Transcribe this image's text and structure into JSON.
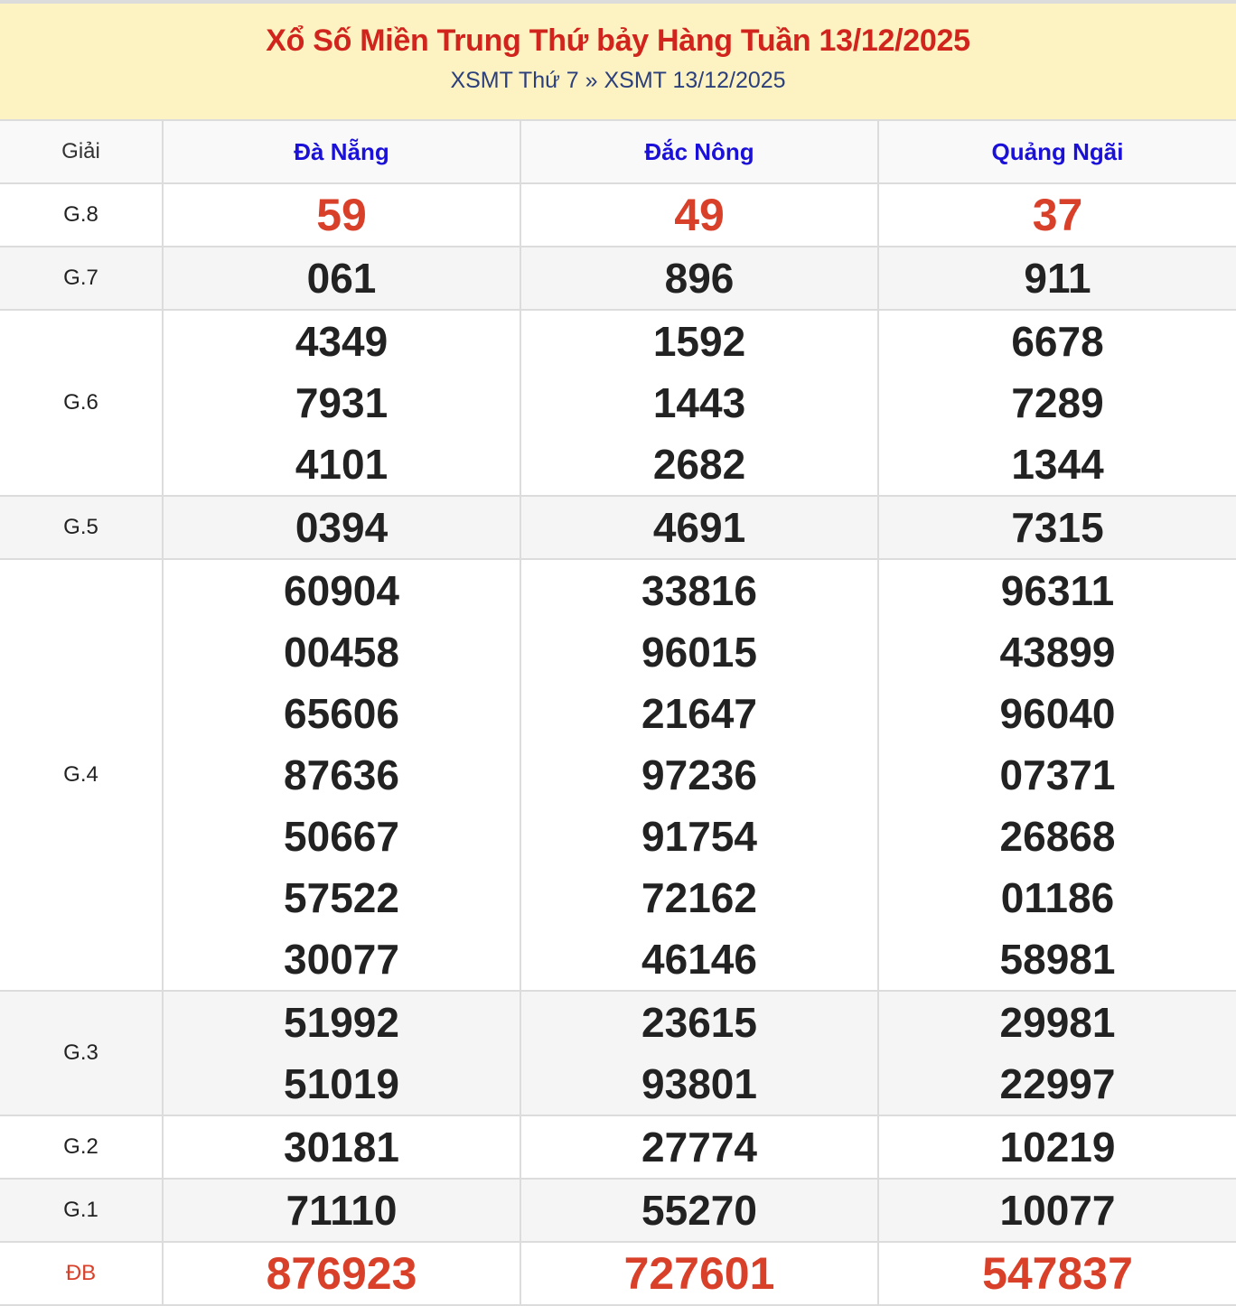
{
  "header": {
    "title": "Xổ Số Miền Trung Thứ bảy Hàng Tuần 13/12/2025",
    "breadcrumb": [
      "XSMT Thứ 7",
      "»",
      "XSMT 13/12/2025"
    ]
  },
  "colors": {
    "title": "#d0241c",
    "province": "#1a10d8",
    "highlight": "#d9402a",
    "header_bg": "#fdf3c2"
  },
  "table": {
    "label_header": "Giải",
    "provinces": [
      "Đà Nẵng",
      "Đắc Nông",
      "Quảng Ngãi"
    ],
    "rows": [
      {
        "label": "G.8",
        "highlight": true,
        "values": [
          [
            "59"
          ],
          [
            "49"
          ],
          [
            "37"
          ]
        ]
      },
      {
        "label": "G.7",
        "values": [
          [
            "061"
          ],
          [
            "896"
          ],
          [
            "911"
          ]
        ]
      },
      {
        "label": "G.6",
        "values": [
          [
            "4349",
            "7931",
            "4101"
          ],
          [
            "1592",
            "1443",
            "2682"
          ],
          [
            "6678",
            "7289",
            "1344"
          ]
        ]
      },
      {
        "label": "G.5",
        "values": [
          [
            "0394"
          ],
          [
            "4691"
          ],
          [
            "7315"
          ]
        ]
      },
      {
        "label": "G.4",
        "values": [
          [
            "60904",
            "00458",
            "65606",
            "87636",
            "50667",
            "57522",
            "30077"
          ],
          [
            "33816",
            "96015",
            "21647",
            "97236",
            "91754",
            "72162",
            "46146"
          ],
          [
            "96311",
            "43899",
            "96040",
            "07371",
            "26868",
            "01186",
            "58981"
          ]
        ]
      },
      {
        "label": "G.3",
        "values": [
          [
            "51992",
            "51019"
          ],
          [
            "23615",
            "93801"
          ],
          [
            "29981",
            "22997"
          ]
        ]
      },
      {
        "label": "G.2",
        "values": [
          [
            "30181"
          ],
          [
            "27774"
          ],
          [
            "10219"
          ]
        ]
      },
      {
        "label": "G.1",
        "values": [
          [
            "71110"
          ],
          [
            "55270"
          ],
          [
            "10077"
          ]
        ]
      },
      {
        "label": "ĐB",
        "highlight": true,
        "values": [
          [
            "876923"
          ],
          [
            "727601"
          ],
          [
            "547837"
          ]
        ]
      }
    ]
  }
}
